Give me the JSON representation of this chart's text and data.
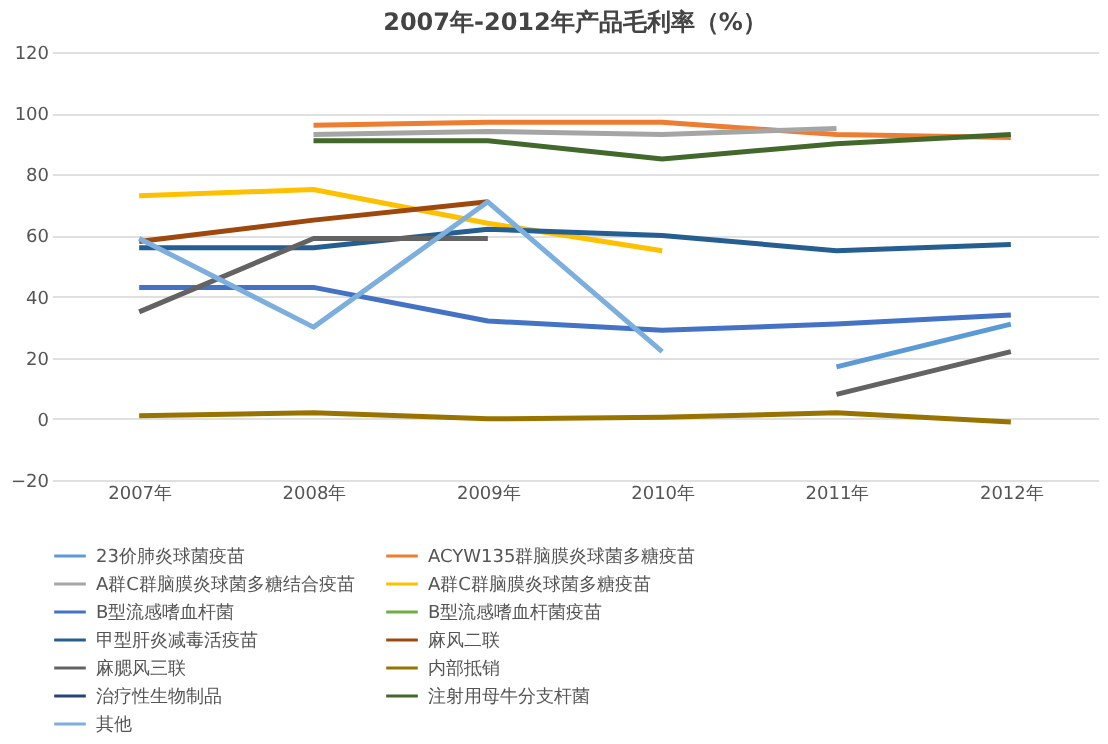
{
  "chart_data": {
    "type": "line",
    "title": "2007年-2012年产品毛利率（%）",
    "categories": [
      "2007年",
      "2008年",
      "2009年",
      "2010年",
      "2011年",
      "2012年"
    ],
    "series": [
      {
        "name": "23价肺炎球菌疫苗",
        "color": "#5b9bd5",
        "values": [
          null,
          null,
          null,
          null,
          17,
          31
        ]
      },
      {
        "name": "ACYW135群脑膜炎球菌多糖疫苗",
        "color": "#ed7d31",
        "values": [
          null,
          96,
          97,
          97,
          93,
          92
        ]
      },
      {
        "name": "A群C群脑膜炎球菌多糖结合疫苗",
        "color": "#a5a5a5",
        "values": [
          null,
          93,
          94,
          93,
          95,
          null
        ]
      },
      {
        "name": "A群C群脑膜炎球菌多糖疫苗",
        "color": "#ffc000",
        "values": [
          73,
          75,
          64,
          55,
          null,
          null
        ]
      },
      {
        "name": "B型流感嗜血杆菌",
        "color": "#4472c4",
        "values": [
          43,
          43,
          32,
          29,
          31,
          34
        ]
      },
      {
        "name": "B型流感嗜血杆菌疫苗",
        "color": "#70ad47",
        "values": [
          null,
          null,
          null,
          null,
          null,
          null
        ]
      },
      {
        "name": "甲型肝炎减毒活疫苗",
        "color": "#255e91",
        "values": [
          56,
          56,
          62,
          60,
          55,
          57
        ]
      },
      {
        "name": "麻风二联",
        "color": "#9e480e",
        "values": [
          58,
          65,
          71,
          null,
          null,
          null
        ]
      },
      {
        "name": "麻腮风三联",
        "color": "#636363",
        "values": [
          35,
          59,
          59,
          null,
          8,
          22
        ]
      },
      {
        "name": "内部抵销",
        "color": "#997300",
        "values": [
          1,
          2,
          0,
          0.5,
          2,
          -1
        ]
      },
      {
        "name": "治疗性生物制品",
        "color": "#264478",
        "values": [
          null,
          null,
          null,
          null,
          null,
          null
        ]
      },
      {
        "name": "注射用母牛分支杆菌",
        "color": "#43682b",
        "values": [
          null,
          91,
          91,
          85,
          90,
          93
        ]
      },
      {
        "name": "其他",
        "color": "#7cafdd",
        "values": [
          59,
          30,
          71,
          22,
          null,
          null
        ]
      }
    ],
    "ylim": [
      -20,
      120
    ],
    "yticks": [
      -20,
      0,
      20,
      40,
      60,
      80,
      100,
      120
    ],
    "grid": "y",
    "legend": "bottom",
    "line_style": "solid",
    "marker": "none"
  }
}
